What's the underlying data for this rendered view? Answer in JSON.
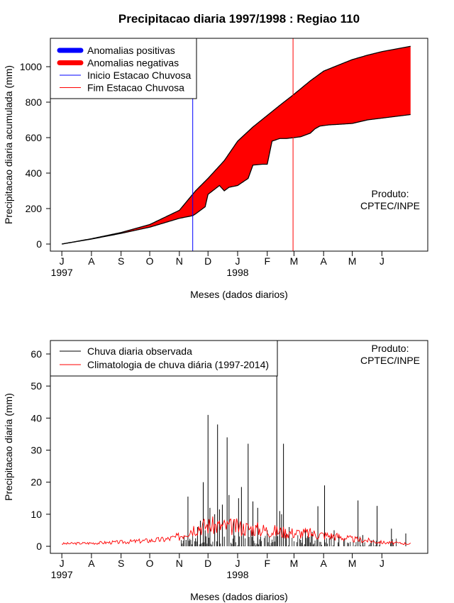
{
  "title": "Precipitacao diaria 1997/1998 : Regiao 110",
  "colors": {
    "positive": "#0000ff",
    "negative": "#ff0000",
    "obs": "#000000",
    "clim": "#ff0000",
    "inicio": "#0000ff",
    "fim": "#ff0000"
  },
  "product_label": [
    "Produto:",
    "CPTEC/INPE"
  ],
  "chart_data": [
    {
      "type": "area",
      "title": "Precipitacao diaria 1997/1998 : Regiao 110",
      "xlabel": "Meses (dados diarios)",
      "ylabel": "Precipitacao diaria acumulada (mm)",
      "x_ticks": [
        "J",
        "A",
        "S",
        "O",
        "N",
        "D",
        "J",
        "F",
        "M",
        "A",
        "M",
        "J"
      ],
      "x_tick_days": [
        0,
        31,
        62,
        92,
        123,
        153,
        184,
        215,
        243,
        274,
        304,
        335
      ],
      "year_labels": [
        {
          "day": 0,
          "label": "1997"
        },
        {
          "day": 184,
          "label": "1998"
        }
      ],
      "yticks": [
        0,
        200,
        400,
        600,
        800,
        1000
      ],
      "ylim": [
        -40,
        1160
      ],
      "xlim": [
        -12,
        383
      ],
      "legend": [
        "Anomalias positivas",
        "Anomalias negativas",
        "Inicio Estacao Chuvosa",
        "Fim Estacao Chuvosa"
      ],
      "vlines": [
        {
          "name": "Inicio Estacao Chuvosa",
          "day": 137
        },
        {
          "name": "Fim Estacao Chuvosa",
          "day": 242
        }
      ],
      "climatology_cumulative": {
        "days": [
          0,
          31,
          62,
          92,
          123,
          140,
          153,
          170,
          184,
          200,
          215,
          230,
          242,
          260,
          274,
          290,
          304,
          320,
          335,
          350,
          365
        ],
        "values": [
          0,
          30,
          65,
          110,
          190,
          300,
          370,
          470,
          580,
          660,
          725,
          790,
          840,
          920,
          975,
          1010,
          1040,
          1065,
          1085,
          1100,
          1115
        ]
      },
      "observed_cumulative": {
        "days": [
          0,
          31,
          62,
          92,
          123,
          137,
          140,
          150,
          153,
          165,
          170,
          175,
          184,
          195,
          200,
          210,
          215,
          220,
          228,
          235,
          243,
          250,
          255,
          260,
          265,
          270,
          274,
          280,
          290,
          304,
          320,
          335,
          350,
          365
        ],
        "values": [
          0,
          28,
          60,
          95,
          145,
          160,
          170,
          210,
          280,
          330,
          300,
          320,
          330,
          370,
          445,
          450,
          450,
          580,
          595,
          595,
          600,
          605,
          615,
          625,
          650,
          665,
          668,
          672,
          675,
          680,
          700,
          710,
          720,
          730
        ]
      }
    },
    {
      "type": "line",
      "xlabel": "Meses (dados diarios)",
      "ylabel": "Precipitacao diaria (mm)",
      "x_ticks": [
        "J",
        "A",
        "S",
        "O",
        "N",
        "D",
        "J",
        "F",
        "M",
        "A",
        "M",
        "J"
      ],
      "x_tick_days": [
        0,
        31,
        62,
        92,
        123,
        153,
        184,
        215,
        243,
        274,
        304,
        335
      ],
      "year_labels": [
        {
          "day": 0,
          "label": "1997"
        },
        {
          "day": 184,
          "label": "1998"
        }
      ],
      "yticks": [
        0,
        10,
        20,
        30,
        40,
        50,
        60
      ],
      "ylim": [
        -2.2,
        64.2
      ],
      "xlim": [
        -12,
        383
      ],
      "legend": [
        "Chuva diaria observada",
        "Climatologia de chuva diária (1997-2014)"
      ],
      "observed_spikes": {
        "days": [
          130,
          132,
          140,
          142,
          145,
          148,
          150,
          153,
          155,
          160,
          163,
          165,
          168,
          170,
          173,
          175,
          180,
          185,
          188,
          190,
          195,
          198,
          200,
          205,
          208,
          215,
          225,
          228,
          230,
          232,
          235,
          238,
          250,
          255,
          258,
          262,
          268,
          275,
          280,
          285,
          290,
          300,
          310,
          315,
          330,
          345,
          360
        ],
        "values": [
          2,
          15.5,
          2.5,
          6,
          8,
          20,
          5,
          41,
          12,
          10,
          38,
          11.5,
          13,
          3,
          34,
          16,
          8,
          15,
          18.5,
          4,
          32,
          5,
          14,
          12,
          3,
          5,
          61,
          11,
          10,
          32,
          4,
          6,
          2,
          5,
          3,
          4.5,
          12.5,
          19,
          2.5,
          5,
          3,
          1,
          14.3,
          3.5,
          12.6,
          5.5,
          4
        ]
      },
      "climatology_daily": {
        "days": [
          0,
          31,
          62,
          92,
          110,
          123,
          130,
          140,
          153,
          170,
          184,
          200,
          215,
          230,
          242,
          260,
          274,
          290,
          304,
          320,
          335,
          350,
          365
        ],
        "values": [
          0.8,
          1.0,
          1.3,
          1.8,
          2.2,
          3.0,
          4.5,
          6.0,
          6.5,
          6.2,
          6.0,
          5.5,
          5.0,
          4.5,
          4.2,
          4.0,
          3.5,
          3.0,
          2.2,
          1.8,
          1.2,
          1.0,
          0.8
        ]
      }
    }
  ]
}
